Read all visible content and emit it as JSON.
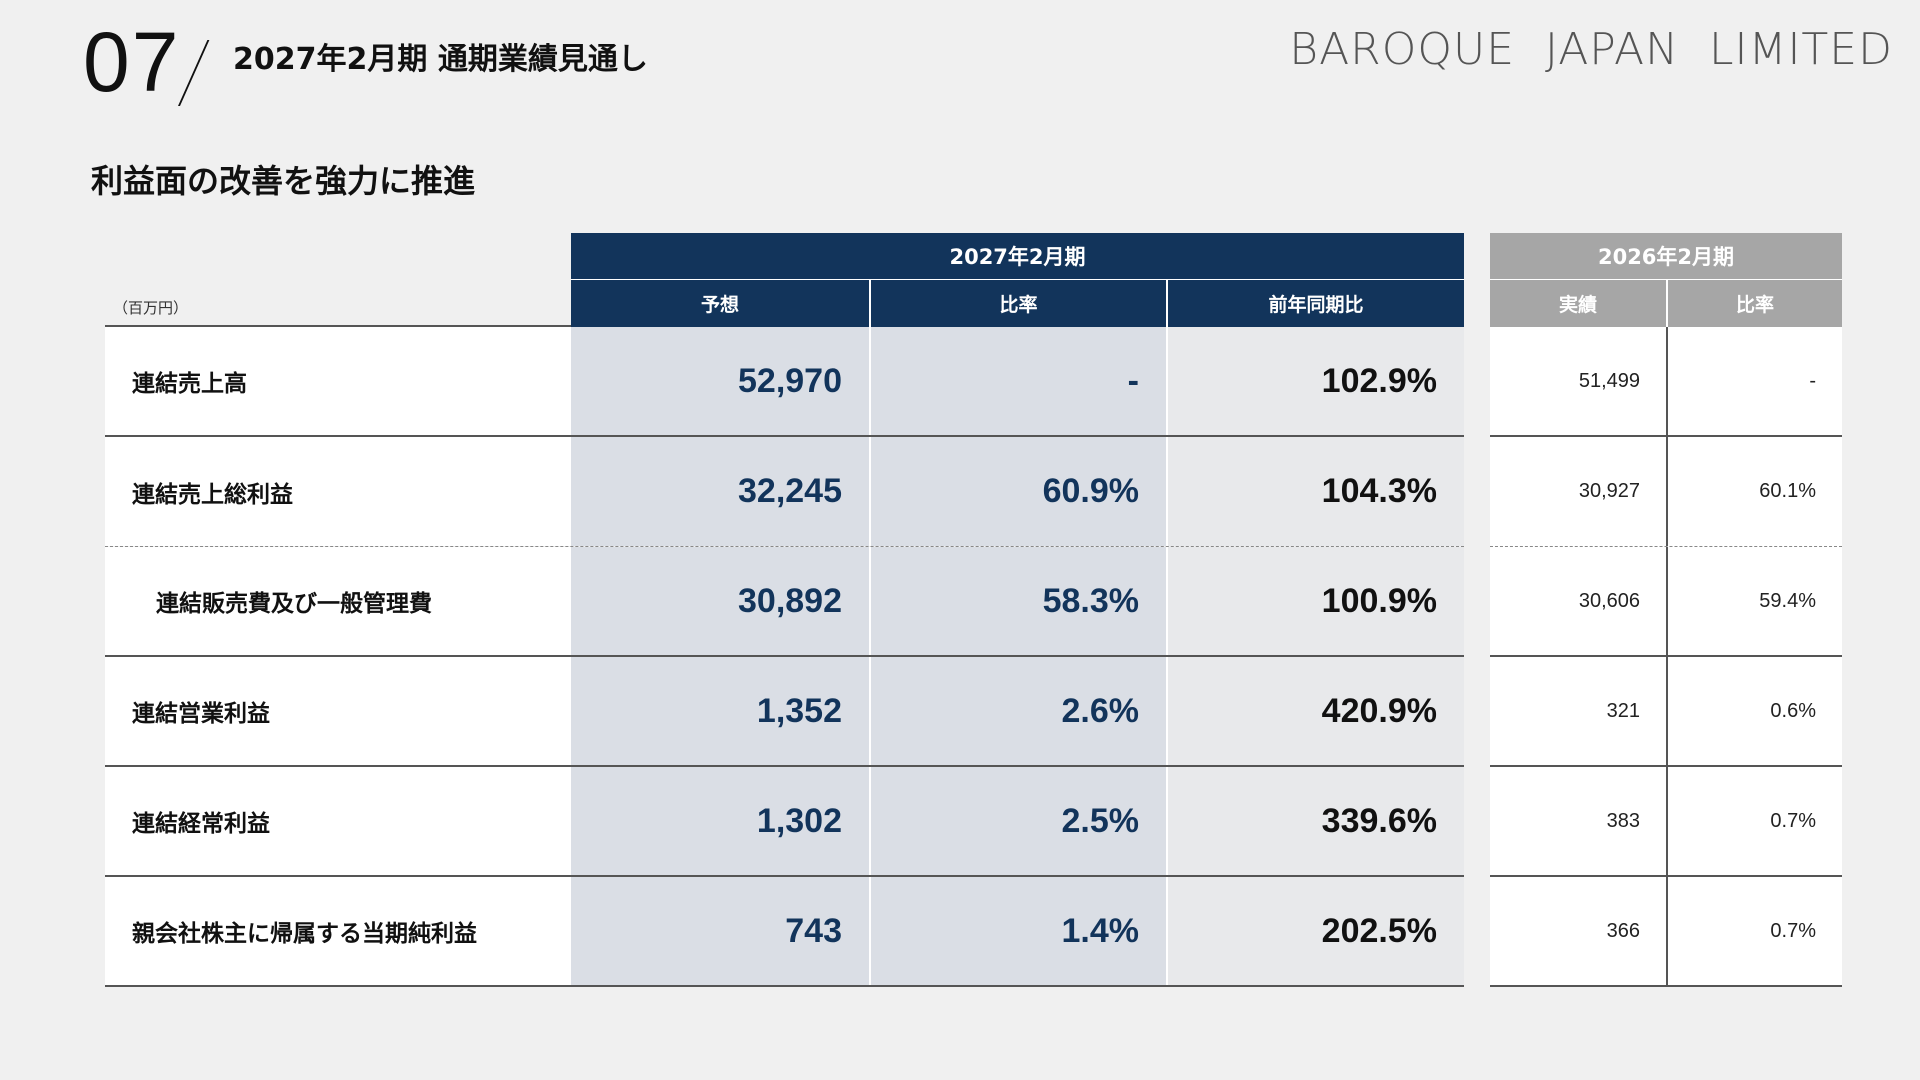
{
  "header": {
    "slide_number": "07",
    "title": "2027年2月期 通期業績見通し",
    "brand": "BAROQUE  JAPAN  LIMITED"
  },
  "subtitle": "利益面の改善を強力に推進",
  "table": {
    "unit": "（百万円）",
    "forecast_period": "2027年2月期",
    "forecast_columns": [
      "予想",
      "比率",
      "前年同期比"
    ],
    "prior_period": "2026年2月期",
    "prior_columns": [
      "実績",
      "比率"
    ],
    "rows": [
      {
        "label": "連結売上高",
        "forecast": "52,970",
        "ratio": "-",
        "yoy": "102.9%",
        "prior_actual": "51,499",
        "prior_ratio": "-"
      },
      {
        "label": "連結売上総利益",
        "forecast": "32,245",
        "ratio": "60.9%",
        "yoy": "104.3%",
        "prior_actual": "30,927",
        "prior_ratio": "60.1%"
      },
      {
        "label": "連結販売費及び一般管理費",
        "forecast": "30,892",
        "ratio": "58.3%",
        "yoy": "100.9%",
        "prior_actual": "30,606",
        "prior_ratio": "59.4%"
      },
      {
        "label": "連結営業利益",
        "forecast": "1,352",
        "ratio": "2.6%",
        "yoy": "420.9%",
        "prior_actual": "321",
        "prior_ratio": "0.6%"
      },
      {
        "label": "連結経常利益",
        "forecast": "1,302",
        "ratio": "2.5%",
        "yoy": "339.6%",
        "prior_actual": "383",
        "prior_ratio": "0.7%"
      },
      {
        "label": "親会社株主に帰属する当期純利益",
        "forecast": "743",
        "ratio": "1.4%",
        "yoy": "202.5%",
        "prior_actual": "366",
        "prior_ratio": "0.7%"
      }
    ]
  },
  "colors": {
    "navy": "#12345b",
    "gray_header": "#a6a6a6",
    "background": "#f0f0f0"
  }
}
